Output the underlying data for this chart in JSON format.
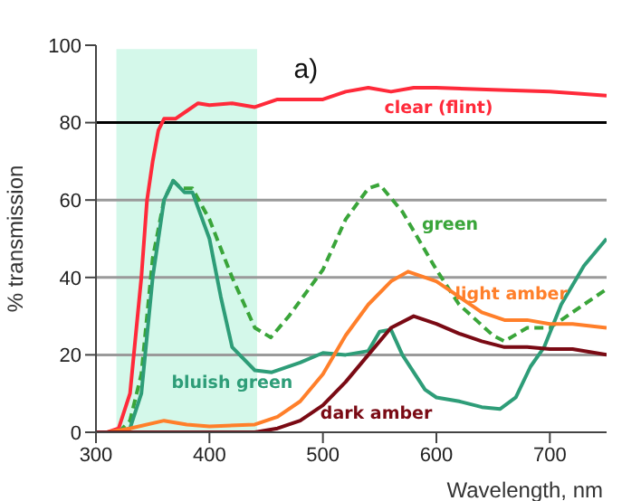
{
  "chart_data": {
    "type": "line",
    "title": "a)",
    "xlabel": "Wavelength, nm",
    "ylabel": "% transmission",
    "xlim": [
      300,
      750
    ],
    "xticks": [
      300,
      400,
      500,
      600,
      700
    ],
    "ylim": [
      0,
      100
    ],
    "yticks": [
      0,
      20,
      40,
      60,
      80,
      100
    ],
    "grid": "y",
    "marker": "none",
    "bands": [
      {
        "axis": "x",
        "from": 318,
        "to": 442,
        "color": "#d4f8ea"
      }
    ],
    "ref_lines": [
      {
        "axis": "y",
        "value": 80,
        "color": "#000000"
      }
    ],
    "series": [
      {
        "name": "clear (flint)",
        "color": "#ff2a3a",
        "line_style": "solid",
        "x": [
          310,
          320,
          330,
          340,
          345,
          350,
          355,
          360,
          370,
          380,
          390,
          400,
          420,
          440,
          460,
          480,
          500,
          520,
          540,
          560,
          580,
          600,
          650,
          700,
          750
        ],
        "values": [
          0,
          1,
          10,
          40,
          60,
          70,
          78,
          81,
          81,
          83,
          85,
          84.5,
          85,
          84,
          86,
          86,
          86,
          88,
          89,
          88,
          89,
          89,
          88.5,
          88,
          87
        ]
      },
      {
        "name": "green",
        "color": "#3aa53a",
        "line_style": "dashed",
        "x": [
          320,
          330,
          340,
          350,
          360,
          368,
          375,
          385,
          400,
          420,
          440,
          454,
          470,
          500,
          520,
          540,
          550,
          570,
          600,
          620,
          650,
          660,
          680,
          700,
          720,
          750
        ],
        "values": [
          0,
          3,
          15,
          45,
          60,
          65,
          63,
          63,
          55,
          40,
          27,
          24.5,
          30,
          42,
          55,
          63,
          64,
          57,
          42,
          33,
          25,
          23.5,
          27,
          27,
          31,
          37
        ]
      },
      {
        "name": "bluish green",
        "color": "#2e9d78",
        "line_style": "solid",
        "x": [
          320,
          330,
          340,
          350,
          360,
          368,
          378,
          385,
          400,
          410,
          420,
          440,
          455,
          480,
          500,
          520,
          540,
          550,
          560,
          570,
          590,
          600,
          620,
          640,
          656,
          670,
          683,
          695,
          710,
          730,
          750
        ],
        "values": [
          0,
          1,
          10,
          40,
          60,
          65,
          62,
          62,
          50,
          35,
          22,
          16,
          15.5,
          18,
          20.5,
          20,
          21,
          26,
          26.5,
          20,
          11,
          9,
          8,
          6.5,
          6,
          9,
          17,
          22,
          33,
          43,
          50
        ]
      },
      {
        "name": "light amber",
        "color": "#ff7f2a",
        "line_style": "solid",
        "x": [
          310,
          330,
          360,
          380,
          400,
          440,
          460,
          480,
          500,
          520,
          540,
          560,
          575,
          600,
          620,
          640,
          660,
          680,
          700,
          720,
          750
        ],
        "values": [
          0,
          1,
          3,
          2,
          1.5,
          2,
          4,
          8,
          15,
          25,
          33,
          39,
          41.5,
          39,
          35,
          31,
          29,
          29,
          28,
          28,
          27
        ]
      },
      {
        "name": "dark amber",
        "color": "#7a0a14",
        "line_style": "solid",
        "x": [
          300,
          440,
          460,
          480,
          500,
          520,
          540,
          560,
          580,
          600,
          620,
          640,
          660,
          680,
          700,
          720,
          750
        ],
        "values": [
          0,
          0,
          1,
          3,
          7,
          13,
          20,
          27,
          30,
          28,
          25.5,
          23.5,
          22,
          22,
          21.5,
          21.5,
          20
        ]
      }
    ]
  }
}
